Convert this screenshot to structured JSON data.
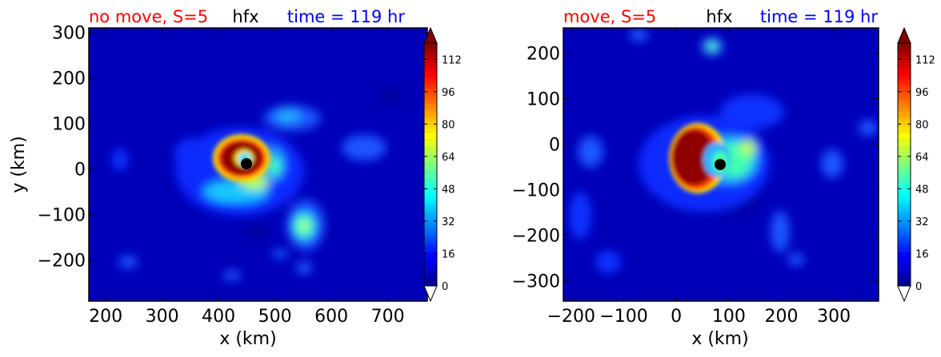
{
  "chart_data": [
    {
      "type": "heatmap",
      "variable": "hfx",
      "title_left": "no move, S=5",
      "title_center": "hfx",
      "title_right": "time = 119 hr",
      "title_colors": {
        "left": "#ff0000",
        "center": "#000000",
        "right": "#0000ff"
      },
      "xlabel": "x (km)",
      "ylabel": "y (km)",
      "xlim": [
        170,
        770
      ],
      "ylim": [
        -290,
        310
      ],
      "xticks": [
        200,
        300,
        400,
        500,
        600,
        700
      ],
      "xtick_labels": [
        "200",
        "300",
        "400",
        "500",
        "600",
        "700"
      ],
      "yticks": [
        300,
        200,
        100,
        0,
        -100,
        -200
      ],
      "ytick_labels": [
        "300",
        "200",
        "100",
        "0",
        "−100",
        "−200"
      ],
      "center_marker": {
        "x": 465,
        "y": 13
      },
      "colorbar": {
        "range": [
          0,
          120
        ],
        "ticks": [
          0,
          16,
          32,
          48,
          64,
          80,
          96,
          112
        ],
        "extend": "both"
      },
      "features": [
        {
          "x": 450,
          "y": 18,
          "value": 120
        },
        {
          "x": 445,
          "y": 40,
          "value": 115
        },
        {
          "x": 450,
          "y": -45,
          "value": 60
        },
        {
          "x": 570,
          "y": -125,
          "value": 55
        },
        {
          "x": 535,
          "y": 118,
          "value": 40
        },
        {
          "x": 330,
          "y": -215,
          "value": 20
        }
      ]
    },
    {
      "type": "heatmap",
      "variable": "hfx",
      "title_left": "move, S=5",
      "title_center": "hfx",
      "title_right": "time = 119 hr",
      "title_colors": {
        "left": "#ff0000",
        "center": "#000000",
        "right": "#0000ff"
      },
      "xlabel": "x (km)",
      "ylabel": "",
      "xlim": [
        -215,
        385
      ],
      "ylim": [
        -345,
        255
      ],
      "xticks": [
        -200,
        -100,
        0,
        100,
        200,
        300
      ],
      "xtick_labels": [
        "−200",
        "−100",
        "0",
        "100",
        "200",
        "300"
      ],
      "yticks": [
        200,
        100,
        0,
        -100,
        -200,
        -300
      ],
      "ytick_labels": [
        "200",
        "100",
        "0",
        "−100",
        "−200",
        "−300"
      ],
      "center_marker": {
        "x": 85,
        "y": -50
      },
      "colorbar": {
        "range": [
          0,
          120
        ],
        "ticks": [
          0,
          16,
          32,
          48,
          64,
          80,
          96,
          112
        ],
        "extend": "both"
      },
      "features": [
        {
          "x": 40,
          "y": -30,
          "value": 120
        },
        {
          "x": 35,
          "y": 20,
          "value": 110
        },
        {
          "x": 110,
          "y": 215,
          "value": 45
        },
        {
          "x": 150,
          "y": -20,
          "value": 45
        },
        {
          "x": -110,
          "y": -20,
          "value": 25
        }
      ]
    }
  ]
}
